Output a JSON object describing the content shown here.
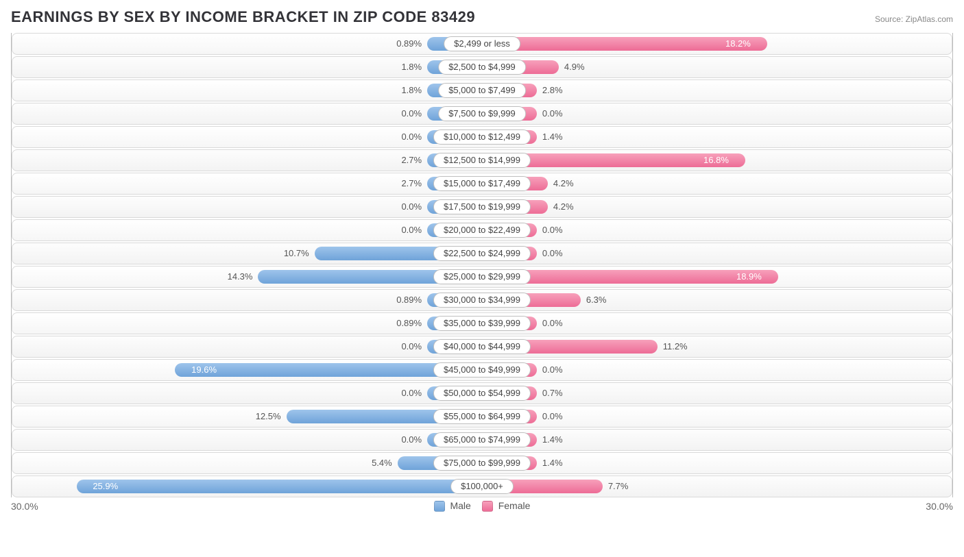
{
  "title": "EARNINGS BY SEX BY INCOME BRACKET IN ZIP CODE 83429",
  "source": "Source: ZipAtlas.com",
  "chart": {
    "type": "pyramid-bar",
    "max_pct": 30.0,
    "axis_left": "30.0%",
    "axis_right": "30.0%",
    "legend": {
      "male": "Male",
      "female": "Female"
    },
    "colors": {
      "male_fill_top": "#9ec4eb",
      "male_fill_bot": "#6fa3d9",
      "female_fill_top": "#f7a0bb",
      "female_fill_bot": "#ed6c96",
      "track_border": "#d9d9d9",
      "text": "#555555"
    },
    "min_bar_pct": 3.5,
    "rows": [
      {
        "label": "$2,499 or less",
        "male": "0.89%",
        "male_v": 0.89,
        "female": "18.2%",
        "female_v": 18.2
      },
      {
        "label": "$2,500 to $4,999",
        "male": "1.8%",
        "male_v": 1.8,
        "female": "4.9%",
        "female_v": 4.9
      },
      {
        "label": "$5,000 to $7,499",
        "male": "1.8%",
        "male_v": 1.8,
        "female": "2.8%",
        "female_v": 2.8
      },
      {
        "label": "$7,500 to $9,999",
        "male": "0.0%",
        "male_v": 0.0,
        "female": "0.0%",
        "female_v": 0.0
      },
      {
        "label": "$10,000 to $12,499",
        "male": "0.0%",
        "male_v": 0.0,
        "female": "1.4%",
        "female_v": 1.4
      },
      {
        "label": "$12,500 to $14,999",
        "male": "2.7%",
        "male_v": 2.7,
        "female": "16.8%",
        "female_v": 16.8
      },
      {
        "label": "$15,000 to $17,499",
        "male": "2.7%",
        "male_v": 2.7,
        "female": "4.2%",
        "female_v": 4.2
      },
      {
        "label": "$17,500 to $19,999",
        "male": "0.0%",
        "male_v": 0.0,
        "female": "4.2%",
        "female_v": 4.2
      },
      {
        "label": "$20,000 to $22,499",
        "male": "0.0%",
        "male_v": 0.0,
        "female": "0.0%",
        "female_v": 0.0
      },
      {
        "label": "$22,500 to $24,999",
        "male": "10.7%",
        "male_v": 10.7,
        "female": "0.0%",
        "female_v": 0.0
      },
      {
        "label": "$25,000 to $29,999",
        "male": "14.3%",
        "male_v": 14.3,
        "female": "18.9%",
        "female_v": 18.9
      },
      {
        "label": "$30,000 to $34,999",
        "male": "0.89%",
        "male_v": 0.89,
        "female": "6.3%",
        "female_v": 6.3
      },
      {
        "label": "$35,000 to $39,999",
        "male": "0.89%",
        "male_v": 0.89,
        "female": "0.0%",
        "female_v": 0.0
      },
      {
        "label": "$40,000 to $44,999",
        "male": "0.0%",
        "male_v": 0.0,
        "female": "11.2%",
        "female_v": 11.2
      },
      {
        "label": "$45,000 to $49,999",
        "male": "19.6%",
        "male_v": 19.6,
        "female": "0.0%",
        "female_v": 0.0
      },
      {
        "label": "$50,000 to $54,999",
        "male": "0.0%",
        "male_v": 0.0,
        "female": "0.7%",
        "female_v": 0.7
      },
      {
        "label": "$55,000 to $64,999",
        "male": "12.5%",
        "male_v": 12.5,
        "female": "0.0%",
        "female_v": 0.0
      },
      {
        "label": "$65,000 to $74,999",
        "male": "0.0%",
        "male_v": 0.0,
        "female": "1.4%",
        "female_v": 1.4
      },
      {
        "label": "$75,000 to $99,999",
        "male": "5.4%",
        "male_v": 5.4,
        "female": "1.4%",
        "female_v": 1.4
      },
      {
        "label": "$100,000+",
        "male": "25.9%",
        "male_v": 25.9,
        "female": "7.7%",
        "female_v": 7.7
      }
    ]
  }
}
